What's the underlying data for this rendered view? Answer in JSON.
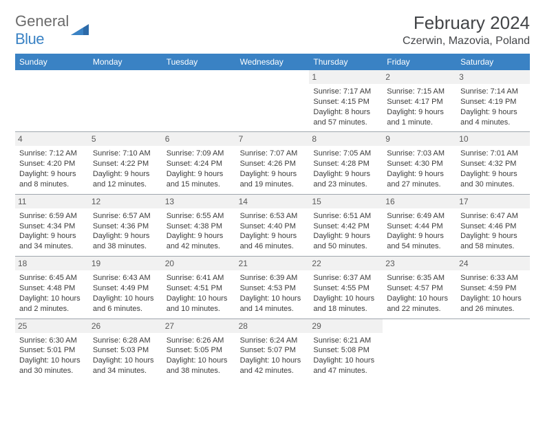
{
  "brand": {
    "part1": "General",
    "part2": "Blue"
  },
  "title": "February 2024",
  "location": "Czerwin, Mazovia, Poland",
  "colors": {
    "accent": "#3a82c4",
    "text": "#434548",
    "grid": "#9fa6ad",
    "dayBg": "#f1f1f1"
  },
  "dayHeaders": [
    "Sunday",
    "Monday",
    "Tuesday",
    "Wednesday",
    "Thursday",
    "Friday",
    "Saturday"
  ],
  "weeks": [
    [
      null,
      null,
      null,
      null,
      {
        "n": "1",
        "sr": "7:17 AM",
        "ss": "4:15 PM",
        "dl": "8 hours and 57 minutes."
      },
      {
        "n": "2",
        "sr": "7:15 AM",
        "ss": "4:17 PM",
        "dl": "9 hours and 1 minute."
      },
      {
        "n": "3",
        "sr": "7:14 AM",
        "ss": "4:19 PM",
        "dl": "9 hours and 4 minutes."
      }
    ],
    [
      {
        "n": "4",
        "sr": "7:12 AM",
        "ss": "4:20 PM",
        "dl": "9 hours and 8 minutes."
      },
      {
        "n": "5",
        "sr": "7:10 AM",
        "ss": "4:22 PM",
        "dl": "9 hours and 12 minutes."
      },
      {
        "n": "6",
        "sr": "7:09 AM",
        "ss": "4:24 PM",
        "dl": "9 hours and 15 minutes."
      },
      {
        "n": "7",
        "sr": "7:07 AM",
        "ss": "4:26 PM",
        "dl": "9 hours and 19 minutes."
      },
      {
        "n": "8",
        "sr": "7:05 AM",
        "ss": "4:28 PM",
        "dl": "9 hours and 23 minutes."
      },
      {
        "n": "9",
        "sr": "7:03 AM",
        "ss": "4:30 PM",
        "dl": "9 hours and 27 minutes."
      },
      {
        "n": "10",
        "sr": "7:01 AM",
        "ss": "4:32 PM",
        "dl": "9 hours and 30 minutes."
      }
    ],
    [
      {
        "n": "11",
        "sr": "6:59 AM",
        "ss": "4:34 PM",
        "dl": "9 hours and 34 minutes."
      },
      {
        "n": "12",
        "sr": "6:57 AM",
        "ss": "4:36 PM",
        "dl": "9 hours and 38 minutes."
      },
      {
        "n": "13",
        "sr": "6:55 AM",
        "ss": "4:38 PM",
        "dl": "9 hours and 42 minutes."
      },
      {
        "n": "14",
        "sr": "6:53 AM",
        "ss": "4:40 PM",
        "dl": "9 hours and 46 minutes."
      },
      {
        "n": "15",
        "sr": "6:51 AM",
        "ss": "4:42 PM",
        "dl": "9 hours and 50 minutes."
      },
      {
        "n": "16",
        "sr": "6:49 AM",
        "ss": "4:44 PM",
        "dl": "9 hours and 54 minutes."
      },
      {
        "n": "17",
        "sr": "6:47 AM",
        "ss": "4:46 PM",
        "dl": "9 hours and 58 minutes."
      }
    ],
    [
      {
        "n": "18",
        "sr": "6:45 AM",
        "ss": "4:48 PM",
        "dl": "10 hours and 2 minutes."
      },
      {
        "n": "19",
        "sr": "6:43 AM",
        "ss": "4:49 PM",
        "dl": "10 hours and 6 minutes."
      },
      {
        "n": "20",
        "sr": "6:41 AM",
        "ss": "4:51 PM",
        "dl": "10 hours and 10 minutes."
      },
      {
        "n": "21",
        "sr": "6:39 AM",
        "ss": "4:53 PM",
        "dl": "10 hours and 14 minutes."
      },
      {
        "n": "22",
        "sr": "6:37 AM",
        "ss": "4:55 PM",
        "dl": "10 hours and 18 minutes."
      },
      {
        "n": "23",
        "sr": "6:35 AM",
        "ss": "4:57 PM",
        "dl": "10 hours and 22 minutes."
      },
      {
        "n": "24",
        "sr": "6:33 AM",
        "ss": "4:59 PM",
        "dl": "10 hours and 26 minutes."
      }
    ],
    [
      {
        "n": "25",
        "sr": "6:30 AM",
        "ss": "5:01 PM",
        "dl": "10 hours and 30 minutes."
      },
      {
        "n": "26",
        "sr": "6:28 AM",
        "ss": "5:03 PM",
        "dl": "10 hours and 34 minutes."
      },
      {
        "n": "27",
        "sr": "6:26 AM",
        "ss": "5:05 PM",
        "dl": "10 hours and 38 minutes."
      },
      {
        "n": "28",
        "sr": "6:24 AM",
        "ss": "5:07 PM",
        "dl": "10 hours and 42 minutes."
      },
      {
        "n": "29",
        "sr": "6:21 AM",
        "ss": "5:08 PM",
        "dl": "10 hours and 47 minutes."
      },
      null,
      null
    ]
  ],
  "labels": {
    "sunrise": "Sunrise: ",
    "sunset": "Sunset: ",
    "daylight": "Daylight: "
  }
}
